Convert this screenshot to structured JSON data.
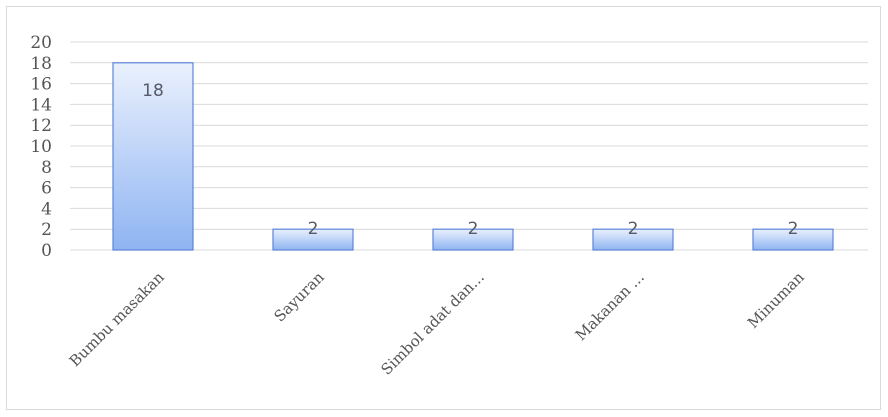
{
  "chart_data": {
    "type": "bar",
    "categories": [
      "Bumbu masakan",
      "Sayuran",
      "Simbol adat dan...",
      "Makanan ...",
      "Minuman"
    ],
    "values": [
      18,
      2,
      2,
      2,
      2
    ],
    "data_labels": [
      "18",
      "2",
      "2",
      "2",
      "2"
    ],
    "ylim": [
      0,
      20
    ],
    "yticks": [
      0,
      2,
      4,
      6,
      8,
      10,
      12,
      14,
      16,
      18,
      20
    ],
    "grid": true,
    "legend": "none",
    "colors": {
      "bar_top": "#eaf1fd",
      "bar_bottom": "#8fb4f2",
      "bar_border": "#5b86d8",
      "grid": "#d9d9d9"
    }
  }
}
